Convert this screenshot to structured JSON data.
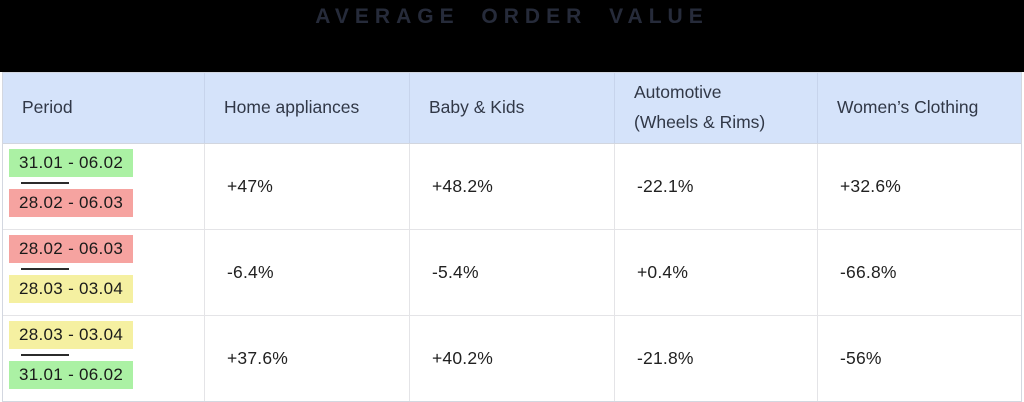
{
  "title": "AVERAGE ORDER VALUE",
  "colors": {
    "band_background": "#000000",
    "title_text": "#262b3a",
    "header_background": "#d5e3fa",
    "header_text": "#313847",
    "highlight_green": "#abf1a4",
    "highlight_red": "#f6a3a0",
    "highlight_yellow": "#f5f0a1",
    "value_text": "#212121"
  },
  "table": {
    "headers": [
      "Period",
      "Home appliances",
      "Baby & Kids",
      "Automotive\n(Wheels & Rims)",
      "Women’s Clothing"
    ],
    "rows": [
      {
        "period_from": "31.01 - 06.02",
        "period_from_color": "#abf1a4",
        "period_to": "28.02 - 06.03",
        "period_to_color": "#f6a3a0",
        "values": [
          "+47%",
          "+48.2%",
          "-22.1%",
          "+32.6%"
        ]
      },
      {
        "period_from": "28.02 - 06.03",
        "period_from_color": "#f6a3a0",
        "period_to": "28.03 - 03.04",
        "period_to_color": "#f5f0a1",
        "values": [
          "-6.4%",
          "-5.4%",
          "+0.4%",
          "-66.8%"
        ]
      },
      {
        "period_from": "28.03 - 03.04",
        "period_from_color": "#f5f0a1",
        "period_to": "31.01 - 06.02",
        "period_to_color": "#abf1a4",
        "values": [
          "+37.6%",
          "+40.2%",
          "-21.8%",
          "-56%"
        ]
      }
    ]
  },
  "chart_data": {
    "type": "table",
    "title": "AVERAGE ORDER VALUE",
    "columns": [
      "Period",
      "Home appliances",
      "Baby & Kids",
      "Automotive (Wheels & Rims)",
      "Women’s Clothing"
    ],
    "rows": [
      {
        "period_compare": [
          "31.01 - 06.02",
          "28.02 - 06.03"
        ],
        "values_pct": [
          47,
          48.2,
          -22.1,
          32.6
        ]
      },
      {
        "period_compare": [
          "28.02 - 06.03",
          "28.03 - 03.04"
        ],
        "values_pct": [
          -6.4,
          -5.4,
          0.4,
          -66.8
        ]
      },
      {
        "period_compare": [
          "28.03 - 03.04",
          "31.01 - 06.02"
        ],
        "values_pct": [
          37.6,
          40.2,
          -21.8,
          -56
        ]
      }
    ]
  }
}
